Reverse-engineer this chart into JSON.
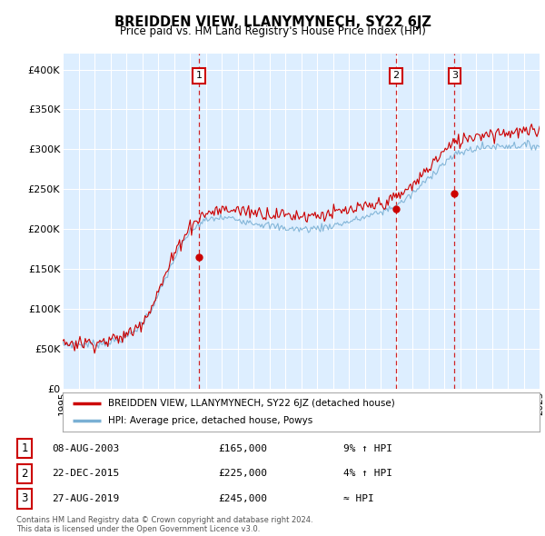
{
  "title": "BREIDDEN VIEW, LLANYMYNECH, SY22 6JZ",
  "subtitle": "Price paid vs. HM Land Registry's House Price Index (HPI)",
  "ylim": [
    0,
    420000
  ],
  "yticks": [
    0,
    50000,
    100000,
    150000,
    200000,
    250000,
    300000,
    350000,
    400000
  ],
  "ytick_labels": [
    "£0",
    "£50K",
    "£100K",
    "£150K",
    "£200K",
    "£250K",
    "£300K",
    "£350K",
    "£400K"
  ],
  "x_start_year": 1995,
  "x_end_year": 2025,
  "transactions": [
    {
      "date_decimal": 2003.59,
      "price": 165000,
      "label": "1"
    },
    {
      "date_decimal": 2015.97,
      "price": 225000,
      "label": "2"
    },
    {
      "date_decimal": 2019.65,
      "price": 245000,
      "label": "3"
    }
  ],
  "vline_dates": [
    2003.59,
    2015.97,
    2019.65
  ],
  "legend_line1": "BREIDDEN VIEW, LLANYMYNECH, SY22 6JZ (detached house)",
  "legend_line2": "HPI: Average price, detached house, Powys",
  "table_rows": [
    {
      "num": "1",
      "date": "08-AUG-2003",
      "price": "£165,000",
      "hpi": "9% ↑ HPI"
    },
    {
      "num": "2",
      "date": "22-DEC-2015",
      "price": "£225,000",
      "hpi": "4% ↑ HPI"
    },
    {
      "num": "3",
      "date": "27-AUG-2019",
      "price": "£245,000",
      "hpi": "≈ HPI"
    }
  ],
  "footer": "Contains HM Land Registry data © Crown copyright and database right 2024.\nThis data is licensed under the Open Government Licence v3.0.",
  "red_color": "#cc0000",
  "blue_color": "#7ab0d4",
  "vline_color": "#cc0000",
  "background_color": "#ffffff",
  "chart_bg_color": "#ddeeff",
  "grid_color": "#ffffff"
}
